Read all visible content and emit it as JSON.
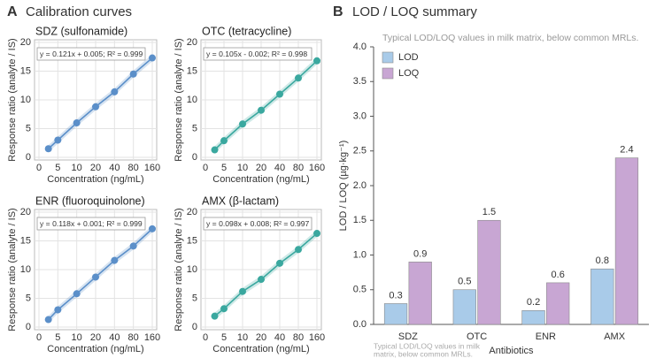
{
  "panels": [
    {
      "letter": "A",
      "title": "Calibration curves"
    },
    {
      "letter": "B",
      "title": "LOD / LOQ summary"
    }
  ],
  "chart_data": [
    {
      "type": "line",
      "title": "SDZ (sulfonamide)",
      "annotation": "y = 0.121x + 0.005; R² = 0.999",
      "xlabel": "Concentration (ng/mL)",
      "ylabel": "Response ratio (analyte / IS)",
      "color": "#5b8fc9",
      "x": [
        2.5,
        5,
        10,
        20,
        40,
        80,
        160
      ],
      "values": [
        1.5,
        3.0,
        6.0,
        8.8,
        11.4,
        14.5,
        17.3
      ],
      "xticks": [
        0,
        5,
        10,
        20,
        40,
        80,
        160
      ],
      "ylim": [
        0,
        20
      ],
      "yticks": [
        0,
        5,
        10,
        15,
        20
      ],
      "grid": true
    },
    {
      "type": "line",
      "title": "OTC (tetracycline)",
      "annotation": "y = 0.105x - 0.002; R² = 0.998",
      "xlabel": "Concentration (ng/mL)",
      "ylabel": "Response ratio (analyte / IS)",
      "color": "#3aa89f",
      "x": [
        2.5,
        5,
        10,
        20,
        40,
        80,
        160
      ],
      "values": [
        1.3,
        2.9,
        5.8,
        8.2,
        11.0,
        13.8,
        16.8
      ],
      "xticks": [
        0,
        5,
        10,
        20,
        40,
        80,
        160
      ],
      "ylim": [
        0,
        20
      ],
      "yticks": [
        0,
        5,
        10,
        15,
        20
      ],
      "grid": true
    },
    {
      "type": "line",
      "title": "ENR (fluoroquinolone)",
      "annotation": "y = 0.118x + 0.001; R² = 0.999",
      "xlabel": "Concentration (ng/mL)",
      "ylabel": "Response ratio (analyte / IS)",
      "color": "#5b8fc9",
      "x": [
        2.5,
        5,
        10,
        20,
        40,
        80,
        160
      ],
      "values": [
        1.3,
        3.0,
        5.8,
        8.7,
        11.6,
        14.1,
        17.1
      ],
      "xticks": [
        0,
        5,
        10,
        20,
        40,
        80,
        160
      ],
      "ylim": [
        0,
        20
      ],
      "yticks": [
        0,
        5,
        10,
        15,
        20
      ],
      "grid": true
    },
    {
      "type": "line",
      "title": "AMX (β-lactam)",
      "annotation": "y = 0.098x + 0.008; R² = 0.997",
      "xlabel": "Concentration (ng/mL)",
      "ylabel": "Response ratio (analyte / IS)",
      "color": "#3aa89f",
      "x": [
        2.5,
        5,
        10,
        20,
        40,
        80,
        160
      ],
      "values": [
        1.9,
        3.2,
        6.2,
        8.3,
        11.1,
        13.5,
        16.3
      ],
      "xticks": [
        0,
        5,
        10,
        20,
        40,
        80,
        160
      ],
      "ylim": [
        0,
        20
      ],
      "yticks": [
        0,
        5,
        10,
        15,
        20
      ],
      "grid": true
    },
    {
      "type": "bar",
      "subtitle": "Typical LOD/LOQ values in milk matrix, below common MRLs.",
      "annotation": [
        "Typical LOD/LOQ values in milk",
        "matrix, below common MRLs."
      ],
      "xlabel": "Antibiotics",
      "ylabel": "LOD / LOQ (µg·kg⁻¹)",
      "categories": [
        "SDZ",
        "OTC",
        "ENR",
        "AMX"
      ],
      "series": [
        {
          "name": "LOD",
          "color": "#a9cbe9",
          "values": [
            0.3,
            0.5,
            0.2,
            0.8
          ]
        },
        {
          "name": "LOQ",
          "color": "#c8a6d3",
          "values": [
            0.9,
            1.5,
            0.6,
            2.4
          ]
        }
      ],
      "ylim": [
        0,
        4
      ],
      "yticks": [
        {
          "value": 0,
          "label": "0.0"
        },
        0.5,
        {
          "value": 1,
          "label": "1.0"
        },
        1.5,
        {
          "value": 2,
          "label": "2.0"
        },
        2.5,
        {
          "value": 3,
          "label": "3.0"
        },
        3.5,
        {
          "value": 4,
          "label": "4.0"
        }
      ],
      "legend": "upper left",
      "grid": false
    }
  ]
}
